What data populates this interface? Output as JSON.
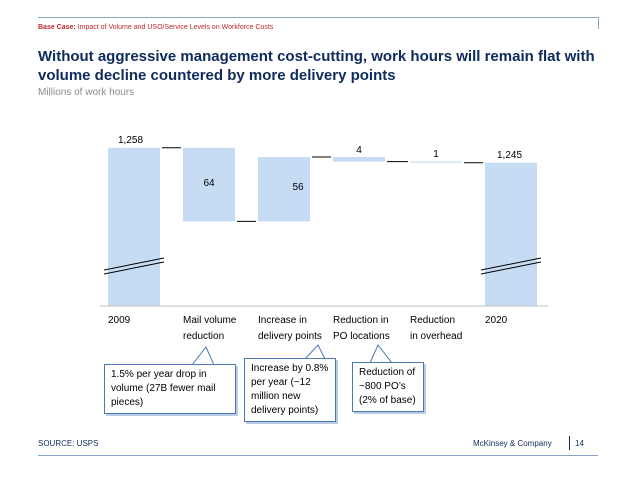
{
  "header": {
    "basecase_label": "Base Case:",
    "basecase_text": "Impact of Volume and USO/Service Levels on Workforce Costs",
    "title": "Without aggressive management cost-cutting, work hours will remain flat with volume decline countered by more delivery points",
    "subtitle": "Millions of work hours"
  },
  "chart_data": {
    "type": "bar",
    "subtype": "waterfall",
    "categories": [
      "2009",
      "Mail volume reduction",
      "Increase in delivery points",
      "Reduction in PO locations",
      "Reduction in overhead",
      "2020"
    ],
    "category_lines": [
      [
        "2009"
      ],
      [
        "Mail volume",
        "reduction"
      ],
      [
        "Increase in",
        "delivery points"
      ],
      [
        "Reduction in",
        "PO locations"
      ],
      [
        "Reduction",
        "in overhead"
      ],
      [
        "2020"
      ]
    ],
    "values": [
      1258,
      -64,
      56,
      -4,
      -1,
      1245
    ],
    "labels": [
      "1,258",
      "64",
      "56",
      "4",
      "1",
      "1,245"
    ],
    "measures": [
      "total",
      "relative",
      "relative",
      "relative",
      "relative",
      "total"
    ],
    "axis_break": true,
    "bar_color": "#c6dcf2",
    "connector_color": "#000000"
  },
  "callouts": [
    {
      "text": "1.5% per year drop in volume (27B fewer mail pieces)"
    },
    {
      "text": "Increase by 0.8% per year (~12 million new delivery points)"
    },
    {
      "text": "Reduction of ~800 PO’s (2% of base)"
    }
  ],
  "footer": {
    "source": "SOURCE: USPS",
    "brand": "McKinsey & Company",
    "page": "14"
  }
}
